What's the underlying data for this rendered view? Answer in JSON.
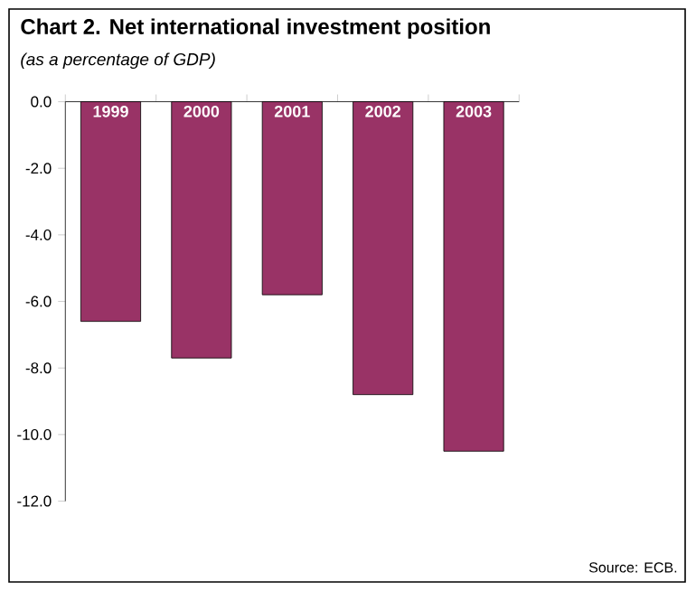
{
  "chart_data": {
    "type": "bar",
    "title": "Chart 2. Net international investment position",
    "subtitle": "(as a percentage of GDP)",
    "categories": [
      "1999",
      "2000",
      "2001",
      "2002",
      "2003"
    ],
    "values": [
      -6.6,
      -7.7,
      -5.8,
      -8.8,
      -10.5
    ],
    "color": "#993366",
    "ylim": [
      -12,
      0
    ],
    "yticks": [
      {
        "value": 0,
        "label": "0.0"
      },
      {
        "value": -2,
        "label": "-2.0"
      },
      {
        "value": -4,
        "label": "-4.0"
      },
      {
        "value": -6,
        "label": "-6.0"
      },
      {
        "value": -8,
        "label": "-8.0"
      },
      {
        "value": -10,
        "label": "-10.0"
      },
      {
        "value": -12,
        "label": "-12.0"
      }
    ],
    "annotations": [
      "Source: ECB."
    ]
  }
}
